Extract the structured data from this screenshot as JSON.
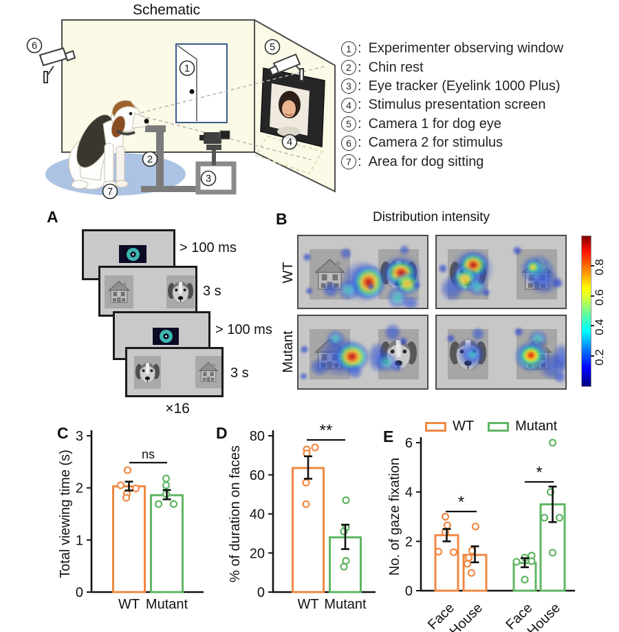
{
  "colors": {
    "wt": "#EF8843",
    "mutant": "#5FB563",
    "axis": "#111111"
  },
  "schematic": {
    "title": "Schematic",
    "diagram_numbers": [
      "1",
      "2",
      "3",
      "4",
      "5",
      "6",
      "7"
    ],
    "legend_items": [
      {
        "num": "1",
        "label": "Experimenter observing window"
      },
      {
        "num": "2",
        "label": "Chin rest"
      },
      {
        "num": "3",
        "label": "Eye tracker (Eyelink 1000 Plus)"
      },
      {
        "num": "4",
        "label": "Stimulus presentation screen"
      },
      {
        "num": "5",
        "label": "Camera 1 for dog eye"
      },
      {
        "num": "6",
        "label": "Camera 2 for stimulus"
      },
      {
        "num": "7",
        "label": "Area for dog sitting"
      }
    ]
  },
  "panel_a": {
    "label": "A",
    "screens": [
      {
        "type": "fixation",
        "duration": "> 100 ms"
      },
      {
        "type": "pair",
        "left": "house",
        "right": "dog-face",
        "duration": "3 s"
      },
      {
        "type": "fixation",
        "duration": "> 100 ms"
      },
      {
        "type": "pair",
        "left": "dog-face",
        "right": "house",
        "duration": "3 s"
      }
    ],
    "repeat_label": "×16"
  },
  "panel_b": {
    "label": "B",
    "title": "Distribution intensity",
    "row_labels": [
      "WT",
      "Mutant"
    ],
    "panels": [
      {
        "row": "WT",
        "left_stimulus": "house",
        "right_stimulus": "dog-face"
      },
      {
        "row": "WT",
        "left_stimulus": "dog-face",
        "right_stimulus": "house"
      },
      {
        "row": "Mutant",
        "left_stimulus": "house",
        "right_stimulus": "dog-face"
      },
      {
        "row": "Mutant",
        "left_stimulus": "dog-face",
        "right_stimulus": "house"
      }
    ],
    "colorbar": {
      "range": [
        0,
        1
      ],
      "ticks": [
        "0.2",
        "0.4",
        "0.6",
        "0.8"
      ]
    }
  },
  "chart_data": [
    {
      "id": "C",
      "type": "bar",
      "panel_label": "C",
      "ylabel": "Total viewing time (s)",
      "ylim": [
        0,
        3
      ],
      "yticks": [
        0,
        1,
        2,
        3
      ],
      "categories": [
        "WT",
        "Mutant"
      ],
      "series": [
        {
          "name": "WT",
          "color": "#EF8843",
          "value": 2.03,
          "err": [
            1.95,
            2.12
          ],
          "points": [
            2.34,
            2.05,
            1.99,
            1.89,
            1.81
          ]
        },
        {
          "name": "Mutant",
          "color": "#5FB563",
          "value": 1.86,
          "err": [
            1.78,
            1.96
          ],
          "points": [
            2.18,
            2.05,
            1.88,
            1.69,
            1.69
          ]
        }
      ],
      "significance": [
        {
          "pair": [
            "WT",
            "Mutant"
          ],
          "label": "ns"
        }
      ]
    },
    {
      "id": "D",
      "type": "bar",
      "panel_label": "D",
      "ylabel": "% of duration on faces",
      "ylim": [
        0,
        80
      ],
      "yticks": [
        0,
        20,
        40,
        60,
        80
      ],
      "categories": [
        "WT",
        "Mutant"
      ],
      "series": [
        {
          "name": "WT",
          "color": "#EF8843",
          "value": 63.5,
          "err": [
            58,
            69.5
          ],
          "points": [
            74,
            73,
            71,
            56,
            45
          ]
        },
        {
          "name": "Mutant",
          "color": "#5FB563",
          "value": 28,
          "err": [
            22,
            34.5
          ],
          "points": [
            47,
            33,
            31,
            16,
            13
          ]
        }
      ],
      "significance": [
        {
          "pair": [
            "WT",
            "Mutant"
          ],
          "label": "**"
        }
      ]
    },
    {
      "id": "E",
      "type": "bar",
      "panel_label": "E",
      "ylabel": "No. of gaze fixation",
      "ylim": [
        0,
        6
      ],
      "yticks": [
        0,
        2,
        4,
        6
      ],
      "categories": [
        "Face",
        "House",
        "Face",
        "House"
      ],
      "legend": [
        {
          "label": "WT",
          "color": "#EF8843"
        },
        {
          "label": "Mutant",
          "color": "#5FB563"
        }
      ],
      "series": [
        {
          "name": "WT Face",
          "group": "WT",
          "color": "#EF8843",
          "value": 2.25,
          "err": [
            2.0,
            2.5
          ],
          "points": [
            3.0,
            2.65,
            2.37,
            1.58,
            1.56
          ]
        },
        {
          "name": "WT House",
          "group": "WT",
          "color": "#EF8843",
          "value": 1.45,
          "err": [
            1.15,
            1.8
          ],
          "points": [
            2.6,
            1.62,
            1.34,
            1.09,
            0.72
          ]
        },
        {
          "name": "Mutant Face",
          "group": "Mutant",
          "color": "#5FB563",
          "value": 1.12,
          "err": [
            0.95,
            1.32
          ],
          "points": [
            1.42,
            1.34,
            1.2,
            1.17,
            0.45
          ]
        },
        {
          "name": "Mutant House",
          "group": "Mutant",
          "color": "#5FB563",
          "value": 3.5,
          "err": [
            2.78,
            4.22
          ],
          "points": [
            6.0,
            4.0,
            2.96,
            2.96,
            1.54
          ]
        }
      ],
      "significance": [
        {
          "pair": [
            "Face",
            "House"
          ],
          "group": "WT",
          "label": "*"
        },
        {
          "pair": [
            "Face",
            "House"
          ],
          "group": "Mutant",
          "label": "*"
        }
      ]
    }
  ]
}
